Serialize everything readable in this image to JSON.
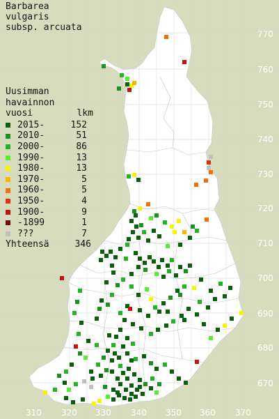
{
  "title": [
    "Barbarea",
    "vulgaris",
    "subsp. arcuata"
  ],
  "legend": {
    "heading": [
      "Uusimman",
      "havainnon"
    ],
    "col_year": "vuosi",
    "col_count": "lkm",
    "rows": [
      {
        "label": "2015-",
        "count": "152",
        "color": "#0b5e0b"
      },
      {
        "label": "2010-",
        "count": "51",
        "color": "#1f8f1f"
      },
      {
        "label": "2000-",
        "count": "86",
        "color": "#22b422"
      },
      {
        "label": "1990-",
        "count": "13",
        "color": "#55ee33"
      },
      {
        "label": "1980-",
        "count": "13",
        "color": "#f5f500"
      },
      {
        "label": "1970-",
        "count": "5",
        "color": "#f5b800"
      },
      {
        "label": "1960-",
        "count": "5",
        "color": "#f07010"
      },
      {
        "label": "1950-",
        "count": "4",
        "color": "#e03010"
      },
      {
        "label": "1900-",
        "count": "9",
        "color": "#c81010"
      },
      {
        "label": "-1899",
        "count": "1",
        "color": "#7a0a0a"
      },
      {
        "label": "???",
        "count": "7",
        "color": "#c0c0c0"
      }
    ],
    "total_label": "Yhteensä",
    "total_count": "346"
  },
  "y_axis_labels": [
    "770",
    "760",
    "750",
    "740",
    "730",
    "720",
    "710",
    "700",
    "690",
    "680",
    "670"
  ],
  "x_axis_labels": [
    "310",
    "320",
    "330",
    "340",
    "350",
    "360",
    "370"
  ],
  "colors": {
    "background": "#d6dcbd",
    "land": "#ffffff",
    "grid": "#cfcfcf",
    "label": "#ffffff"
  }
}
